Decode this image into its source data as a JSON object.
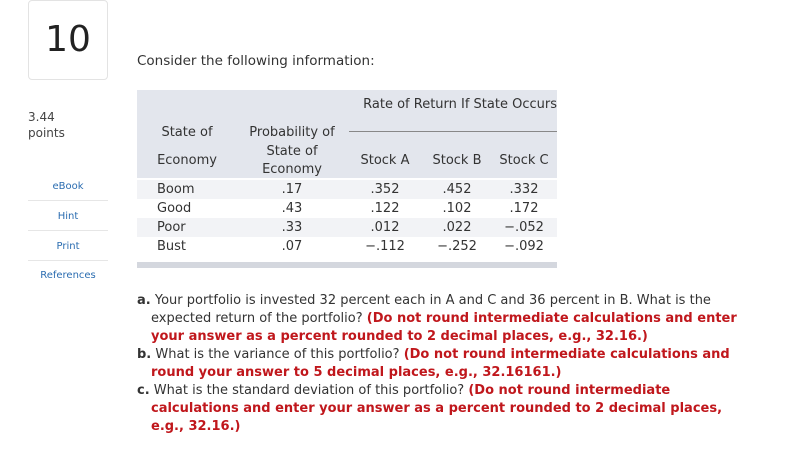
{
  "question_number": "10",
  "points": {
    "value": "3.44",
    "label": "points"
  },
  "buttons": [
    "eBook",
    "Hint",
    "Print",
    "References"
  ],
  "intro": "Consider the following information:",
  "table": {
    "group_header": "Rate of Return If State Occurs",
    "headers": [
      [
        "State of",
        "Economy"
      ],
      [
        "Probability of",
        "State of",
        "Economy"
      ],
      "Stock A",
      "Stock B",
      "Stock C"
    ],
    "rows": [
      [
        "Boom",
        ".17",
        ".352",
        ".452",
        ".332"
      ],
      [
        "Good",
        ".43",
        ".122",
        ".102",
        ".172"
      ],
      [
        "Poor",
        ".33",
        ".012",
        ".022",
        "−.052"
      ],
      [
        "Bust",
        ".07",
        "−.112",
        "−.252",
        "−.092"
      ]
    ]
  },
  "questions": [
    {
      "letter": "a.",
      "text": "Your portfolio is invested 32 percent each in A and C and 36 percent in B. What is the expected return of the portfolio?",
      "instruction": "(Do not round intermediate calculations and enter your answer as a percent rounded to 2 decimal places, e.g., 32.16.)"
    },
    {
      "letter": "b.",
      "text": "What is the variance of this portfolio?",
      "instruction": "(Do not round intermediate calculations and round your answer to 5 decimal places, e.g., 32.16161.)"
    },
    {
      "letter": "c.",
      "text": "What is the standard deviation of this portfolio?",
      "instruction": "(Do not round intermediate calculations and enter your answer as a percent rounded to 2 decimal places, e.g., 32.16.)"
    }
  ]
}
